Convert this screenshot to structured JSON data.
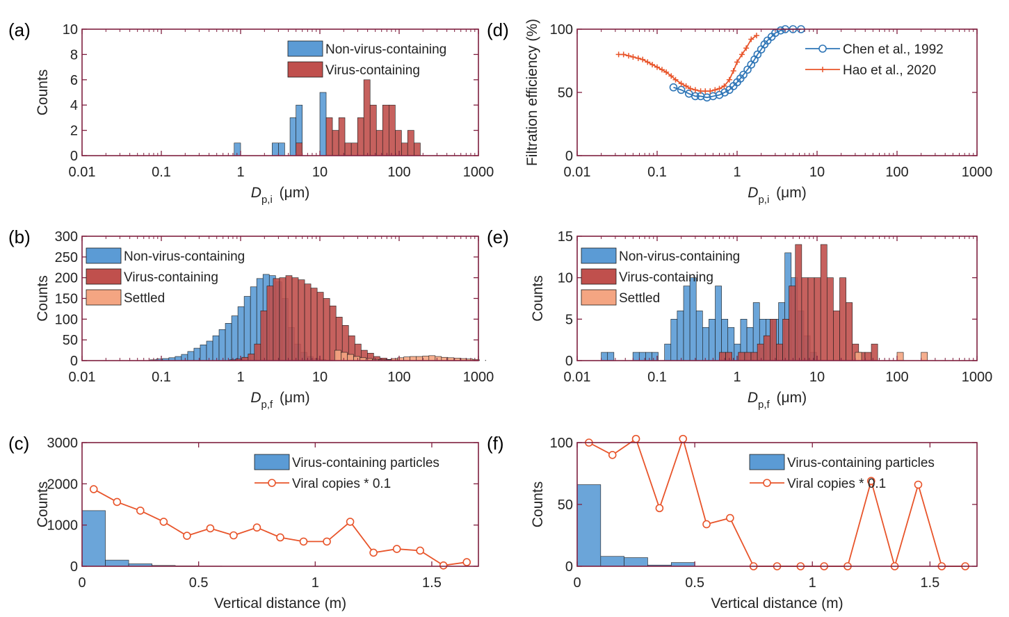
{
  "figure": {
    "colors": {
      "nonvirus": "#5b9bd5",
      "virus": "#c0504d",
      "settled": "#f4a582",
      "line_blue": "#2e75b6",
      "line_red": "#e8542a",
      "axis": "#7f1f3f"
    }
  },
  "chart_data": [
    {
      "panel": "a",
      "label": "(a)",
      "type": "bar",
      "xscale": "log",
      "xlim": [
        0.01,
        1000
      ],
      "ylim": [
        0,
        10
      ],
      "xticks": [
        0.01,
        0.1,
        1,
        10,
        100,
        1000
      ],
      "xticklabels": [
        "0.01",
        "0.1",
        "1",
        "10",
        "100",
        "1000"
      ],
      "yticks": [
        0,
        2,
        4,
        6,
        8,
        10
      ],
      "yticklabels": [
        "0",
        "2",
        "4",
        "6",
        "8",
        "10"
      ],
      "xlabel": "D",
      "xlabel_sub": "p,i",
      "xlabel_unit": "(μm)",
      "ylabel": "Counts",
      "legend_position": "top-right",
      "series": [
        {
          "name": "Non-virus-containing",
          "color": "nonvirus",
          "bins": [
            [
              0.83,
              1,
              1
            ],
            [
              2.5,
              3.0,
              1
            ],
            [
              3.0,
              3.6,
              1
            ],
            [
              4.2,
              5.0,
              3
            ],
            [
              5.0,
              6.0,
              4
            ],
            [
              10,
              12,
              5
            ]
          ]
        },
        {
          "name": "Virus-containing",
          "color": "virus",
          "bins": [
            [
              5.0,
              6.0,
              1
            ],
            [
              12,
              14.4,
              3
            ],
            [
              14.4,
              17.3,
              2
            ],
            [
              17.3,
              20.7,
              3
            ],
            [
              20.7,
              24.9,
              1
            ],
            [
              24.9,
              29.9,
              1
            ],
            [
              29.9,
              35.8,
              3
            ],
            [
              35.8,
              43.0,
              6
            ],
            [
              43.0,
              51.6,
              4
            ],
            [
              51.6,
              61.9,
              2
            ],
            [
              61.9,
              74.3,
              4
            ],
            [
              74.3,
              89.2,
              4
            ],
            [
              89.2,
              107,
              2
            ],
            [
              107,
              128,
              1
            ],
            [
              128,
              154,
              2
            ],
            [
              154,
              185,
              1
            ]
          ]
        }
      ]
    },
    {
      "panel": "b",
      "label": "(b)",
      "type": "bar",
      "xscale": "log",
      "xlim": [
        0.01,
        1000
      ],
      "ylim": [
        0,
        300
      ],
      "xticks": [
        0.01,
        0.1,
        1,
        10,
        100,
        1000
      ],
      "xticklabels": [
        "0.01",
        "0.1",
        "1",
        "10",
        "100",
        "1000"
      ],
      "yticks": [
        0,
        50,
        100,
        150,
        200,
        250,
        300
      ],
      "yticklabels": [
        "0",
        "50",
        "100",
        "150",
        "200",
        "250",
        "300"
      ],
      "xlabel": "D",
      "xlabel_sub": "p,f",
      "xlabel_unit": "(μm)",
      "ylabel": "Counts",
      "legend_position": "top-left",
      "series": [
        {
          "name": "Non-virus-containing",
          "color": "nonvirus",
          "bin_ratio": 1.2,
          "x0": 0.072,
          "values": [
            2,
            4,
            5,
            7,
            10,
            15,
            22,
            30,
            38,
            47,
            60,
            75,
            90,
            108,
            130,
            155,
            178,
            198,
            208,
            205,
            190,
            150,
            80,
            40,
            20,
            10,
            5,
            3,
            1
          ]
        },
        {
          "name": "Virus-containing",
          "color": "virus",
          "bin_ratio": 1.2,
          "x0": 0.72,
          "values": [
            2,
            4,
            8,
            16,
            40,
            120,
            180,
            198,
            200,
            205,
            200,
            195,
            185,
            175,
            165,
            150,
            132,
            105,
            85,
            60,
            40,
            25,
            18,
            10,
            6,
            3,
            2
          ]
        },
        {
          "name": "Settled",
          "color": "settled",
          "bin_ratio": 1.2,
          "x0": 15.4,
          "values": [
            25,
            20,
            15,
            10,
            7,
            5,
            3,
            2,
            2,
            5,
            7,
            9,
            10,
            10,
            11,
            12,
            10,
            8,
            7,
            6,
            5,
            4,
            3,
            2,
            1
          ]
        }
      ]
    },
    {
      "panel": "c",
      "label": "(c)",
      "type": "bar+line",
      "xlim": [
        0,
        1.7
      ],
      "ylim": [
        0,
        3000
      ],
      "xticks": [
        0,
        0.5,
        1,
        1.5
      ],
      "xticklabels": [
        "0",
        "0.5",
        "1",
        "1.5"
      ],
      "yticks": [
        0,
        1000,
        2000,
        3000
      ],
      "yticklabels": [
        "0",
        "1000",
        "2000",
        "3000"
      ],
      "xlabel": "Vertical distance (m)",
      "ylabel": "Counts",
      "legend_position": "top-right",
      "bars": {
        "name": "Virus-containing particles",
        "x": [
          0.05,
          0.15,
          0.25,
          0.35,
          0.45,
          0.55,
          0.65,
          0.75,
          0.85,
          0.95,
          1.05,
          1.15,
          1.25,
          1.35,
          1.45,
          1.55,
          1.65
        ],
        "values": [
          1350,
          150,
          60,
          20,
          10,
          5,
          3,
          2,
          2,
          1,
          1,
          1,
          1,
          1,
          1,
          0,
          0
        ]
      },
      "line": {
        "name": "Viral copies * 0.1",
        "x": [
          0.05,
          0.15,
          0.25,
          0.35,
          0.45,
          0.55,
          0.65,
          0.75,
          0.85,
          0.95,
          1.05,
          1.15,
          1.25,
          1.35,
          1.45,
          1.55,
          1.65
        ],
        "values": [
          1870,
          1560,
          1350,
          1080,
          740,
          920,
          750,
          940,
          700,
          600,
          600,
          1080,
          330,
          420,
          380,
          20,
          100
        ]
      }
    },
    {
      "panel": "d",
      "label": "(d)",
      "type": "line",
      "xscale": "log",
      "xlim": [
        0.01,
        1000
      ],
      "ylim": [
        0,
        100
      ],
      "xticks": [
        0.01,
        0.1,
        1,
        10,
        100,
        1000
      ],
      "xticklabels": [
        "0.01",
        "0.1",
        "1",
        "10",
        "100",
        "1000"
      ],
      "yticks": [
        0,
        50,
        100
      ],
      "yticklabels": [
        "0",
        "50",
        "100"
      ],
      "xlabel": "D",
      "xlabel_sub": "p,i",
      "xlabel_unit": "(μm)",
      "ylabel": "Filtration efficiency (%)",
      "legend_position": "top-right",
      "series": [
        {
          "name": "Chen et al., 1992",
          "color": "line_blue",
          "marker": "circle",
          "x": [
            0.16,
            0.2,
            0.25,
            0.3,
            0.35,
            0.42,
            0.5,
            0.6,
            0.7,
            0.8,
            0.9,
            1.0,
            1.1,
            1.2,
            1.35,
            1.5,
            1.65,
            1.8,
            2.0,
            2.2,
            2.4,
            2.7,
            3.0,
            3.5,
            4.0,
            5.0,
            6.3
          ],
          "y": [
            54,
            52,
            49,
            47,
            47,
            46,
            47,
            48,
            50,
            52,
            55,
            58,
            61,
            64,
            68,
            72,
            76,
            80,
            84,
            88,
            91,
            94,
            97,
            99,
            100,
            100,
            100
          ]
        },
        {
          "name": "Hao et al., 2020",
          "color": "line_red",
          "marker": "plus",
          "x": [
            0.033,
            0.038,
            0.044,
            0.05,
            0.058,
            0.066,
            0.076,
            0.087,
            0.1,
            0.115,
            0.13,
            0.15,
            0.17,
            0.2,
            0.23,
            0.26,
            0.3,
            0.35,
            0.4,
            0.46,
            0.53,
            0.6,
            0.69,
            0.8,
            0.9,
            1.0,
            1.15,
            1.3,
            1.5,
            1.75
          ],
          "y": [
            80,
            80,
            79,
            78,
            77,
            76,
            74,
            72,
            70,
            68,
            66,
            63,
            60,
            57,
            55,
            53,
            52,
            51,
            51,
            51,
            52,
            53,
            55,
            60,
            67,
            74,
            80,
            85,
            92,
            95
          ]
        }
      ]
    },
    {
      "panel": "e",
      "label": "(e)",
      "type": "bar",
      "xscale": "log",
      "xlim": [
        0.01,
        1000
      ],
      "ylim": [
        0,
        15
      ],
      "xticks": [
        0.01,
        0.1,
        1,
        10,
        100,
        1000
      ],
      "xticklabels": [
        "0.01",
        "0.1",
        "1",
        "10",
        "100",
        "1000"
      ],
      "yticks": [
        0,
        5,
        10,
        15
      ],
      "yticklabels": [
        "0",
        "5",
        "10",
        "15"
      ],
      "xlabel": "D",
      "xlabel_sub": "p,f",
      "xlabel_unit": "(μm)",
      "ylabel": "Counts",
      "legend_position": "top-left",
      "series": [
        {
          "name": "Non-virus-containing",
          "color": "nonvirus",
          "bin_ratio": 1.2,
          "x0": 0.02,
          "values": [
            1,
            1,
            0,
            0,
            0,
            1,
            1,
            1,
            1,
            0,
            2,
            5,
            6,
            9,
            10,
            6,
            4,
            5,
            9,
            5,
            4,
            2,
            5,
            4,
            7,
            5,
            5,
            5,
            7,
            13,
            10,
            6,
            3,
            1
          ]
        },
        {
          "name": "Virus-containing",
          "color": "virus",
          "bin_ratio": 1.2,
          "x0": 0.6,
          "values": [
            1,
            1,
            0,
            1,
            1,
            1,
            2,
            3,
            5,
            2,
            5,
            9,
            14,
            10,
            10,
            10,
            14,
            10,
            6,
            10,
            7,
            2,
            1,
            1,
            2
          ]
        },
        {
          "name": "Settled",
          "color": "settled",
          "singles": [
            [
              30,
              1
            ],
            [
              100,
              1
            ],
            [
              200,
              1
            ]
          ]
        }
      ]
    },
    {
      "panel": "f",
      "label": "(f)",
      "type": "bar+line",
      "xlim": [
        0,
        1.7
      ],
      "ylim": [
        0,
        100
      ],
      "xticks": [
        0,
        0.5,
        1,
        1.5
      ],
      "xticklabels": [
        "0",
        "0.5",
        "1",
        "1.5"
      ],
      "yticks": [
        0,
        50,
        100
      ],
      "yticklabels": [
        "0",
        "50",
        "100"
      ],
      "xlabel": "Vertical distance (m)",
      "ylabel": "Counts",
      "legend_position": "top-right",
      "bars": {
        "name": "Virus-containing particles",
        "x": [
          0.05,
          0.15,
          0.25,
          0.35,
          0.45,
          0.55,
          0.65,
          0.75,
          0.85,
          0.95,
          1.05,
          1.15,
          1.25,
          1.35,
          1.45,
          1.55,
          1.65
        ],
        "values": [
          66,
          8,
          7,
          1,
          3,
          0,
          0,
          0,
          0,
          0,
          0,
          0,
          0,
          0,
          0,
          0,
          0
        ]
      },
      "line": {
        "name": "Viral copies * 0.1",
        "x": [
          0.05,
          0.15,
          0.25,
          0.35,
          0.45,
          0.55,
          0.65,
          0.75,
          0.85,
          0.95,
          1.05,
          1.15,
          1.25,
          1.35,
          1.45,
          1.55,
          1.65
        ],
        "values": [
          100,
          90,
          103,
          47,
          103,
          34,
          39,
          0,
          0,
          0,
          0,
          0,
          69,
          0,
          66,
          0,
          0
        ]
      }
    }
  ]
}
